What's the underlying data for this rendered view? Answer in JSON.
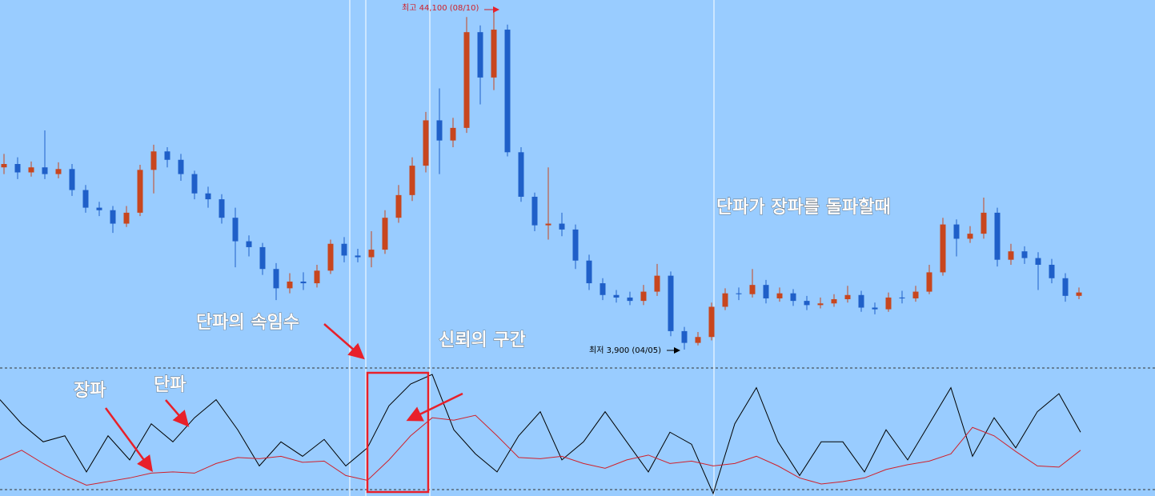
{
  "chart_data": [
    {
      "type": "candlestick",
      "open": [
        25600,
        26000,
        25000,
        25600,
        24800,
        25400,
        22900,
        20800,
        20500,
        18900,
        20200,
        25300,
        27500,
        26500,
        24800,
        22500,
        21800,
        19600,
        16800,
        16100,
        13500,
        11200,
        12000,
        11800,
        13300,
        16500,
        15100,
        14900,
        15800,
        19600,
        22300,
        25800,
        31200,
        28800,
        30300,
        41700,
        36300,
        42000,
        27400,
        22100,
        18700,
        18900,
        18200,
        14500,
        11800,
        10400,
        10100,
        9700,
        10800,
        12700,
        6100,
        4700,
        5400,
        9000,
        10600,
        10500,
        11600,
        10000,
        10600,
        9700,
        9200,
        9400,
        9900,
        10400,
        8900,
        8700,
        10100,
        10000,
        10800,
        13100,
        18800,
        17100,
        17700,
        20200,
        14600,
        15600,
        14800,
        14000,
        12400,
        10300
      ],
      "high": [
        27200,
        26800,
        26300,
        30000,
        26200,
        26000,
        23500,
        21500,
        21000,
        21000,
        25900,
        28300,
        28000,
        27200,
        25200,
        23300,
        22400,
        20800,
        17500,
        16600,
        14200,
        13000,
        13100,
        14000,
        17000,
        17300,
        15900,
        18000,
        20500,
        23500,
        26800,
        32200,
        35000,
        31500,
        43500,
        42500,
        44100,
        42600,
        28000,
        22600,
        25600,
        20200,
        18800,
        15200,
        12400,
        11000,
        10800,
        11600,
        14100,
        13200,
        6600,
        6000,
        9500,
        11200,
        11300,
        13500,
        12200,
        11300,
        11100,
        10300,
        10100,
        10500,
        11500,
        10900,
        9500,
        10700,
        10900,
        11500,
        14000,
        19600,
        19400,
        18600,
        22000,
        20800,
        16500,
        16200,
        15500,
        14700,
        13000,
        11300
      ],
      "low": [
        24800,
        24200,
        24500,
        24200,
        24300,
        22200,
        20200,
        19800,
        17800,
        18500,
        19800,
        22500,
        25600,
        24000,
        21800,
        20800,
        18900,
        13700,
        15000,
        12800,
        9800,
        10600,
        11000,
        11300,
        12900,
        14300,
        14300,
        13700,
        15300,
        19000,
        21600,
        25000,
        24800,
        28000,
        29700,
        33100,
        34800,
        26900,
        21500,
        18000,
        17000,
        17400,
        13500,
        11000,
        9800,
        9500,
        9200,
        9200,
        10300,
        5500,
        3900,
        4400,
        5000,
        8600,
        9800,
        10100,
        9400,
        9600,
        9100,
        8600,
        8800,
        9000,
        9500,
        8400,
        8100,
        8400,
        9400,
        9600,
        10500,
        12700,
        15000,
        16600,
        17100,
        13800,
        14000,
        14100,
        11000,
        11800,
        9600,
        9900
      ],
      "close": [
        26000,
        25000,
        25600,
        24800,
        25400,
        22900,
        20800,
        20500,
        18900,
        20200,
        25300,
        27500,
        26500,
        24800,
        22500,
        21800,
        19600,
        16800,
        16100,
        13500,
        11200,
        12000,
        11800,
        13300,
        16500,
        15100,
        14900,
        15800,
        19600,
        22300,
        25800,
        31200,
        28800,
        30300,
        41700,
        36300,
        42000,
        27400,
        22100,
        18700,
        18900,
        18200,
        14500,
        11800,
        10400,
        10100,
        9700,
        10800,
        12700,
        6100,
        4700,
        5400,
        9000,
        10600,
        10500,
        11600,
        10000,
        10600,
        9700,
        9200,
        9400,
        9900,
        10400,
        8900,
        8700,
        10100,
        10000,
        10800,
        13100,
        18800,
        17100,
        17700,
        20200,
        14600,
        15600,
        14800,
        14000,
        12400,
        10300,
        10700
      ],
      "up_color": "#c8461e",
      "down_color": "#1f5fc8",
      "ylim": [
        3900,
        44100
      ],
      "high_label": "최고 44,100 (08/10)",
      "low_label": "최저 3,900 (04/05)"
    },
    {
      "type": "line",
      "series": [
        {
          "name": "단파",
          "color": "#000000",
          "values": [
            75,
            55,
            40,
            45,
            15,
            45,
            25,
            55,
            40,
            60,
            75,
            50,
            20,
            40,
            28,
            42,
            20,
            35,
            70,
            88,
            96,
            50,
            30,
            15,
            45,
            65,
            25,
            40,
            65,
            40,
            15,
            48,
            38,
            -3,
            55,
            85,
            40,
            12,
            40,
            40,
            15,
            50,
            25,
            55,
            85,
            28,
            60,
            35,
            65,
            80,
            48
          ]
        },
        {
          "name": "장파",
          "color": "#d0202a",
          "values": [
            25,
            33,
            22,
            12,
            4,
            7,
            10,
            14,
            15,
            14,
            22,
            27,
            26,
            28,
            23,
            24,
            12,
            8,
            25,
            45,
            60,
            58,
            62,
            45,
            27,
            26,
            28,
            22,
            18,
            25,
            29,
            22,
            24,
            20,
            22,
            28,
            20,
            10,
            5,
            7,
            10,
            17,
            21,
            24,
            30,
            52,
            45,
            32,
            20,
            19,
            33
          ]
        }
      ],
      "ylim": [
        -5,
        100
      ]
    }
  ],
  "annotations": {
    "fake": "단파의 속임수",
    "trust": "신뢰의 구간",
    "breakout": "단파가 장파를 돌파할때"
  }
}
